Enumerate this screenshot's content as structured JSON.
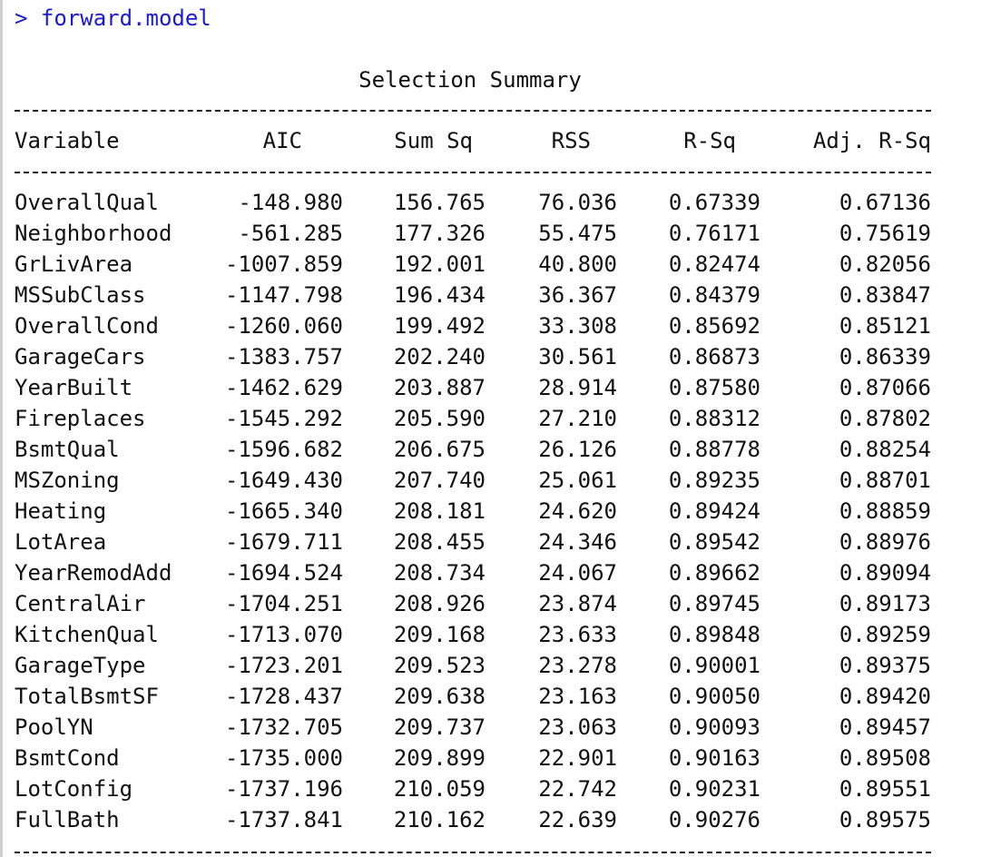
{
  "prompt": {
    "symbol": ">",
    "command": "forward.model"
  },
  "summary": {
    "title": "Selection Summary",
    "headers": {
      "variable": "Variable",
      "aic": "AIC",
      "sum_sq": "Sum Sq",
      "rss": "RSS",
      "r_sq": "R-Sq",
      "adj_r_sq": "Adj. R-Sq"
    },
    "rows": [
      {
        "variable": "OverallQual",
        "aic": "-148.980",
        "sum_sq": "156.765",
        "rss": "76.036",
        "r_sq": "0.67339",
        "adj_r_sq": "0.67136"
      },
      {
        "variable": "Neighborhood",
        "aic": "-561.285",
        "sum_sq": "177.326",
        "rss": "55.475",
        "r_sq": "0.76171",
        "adj_r_sq": "0.75619"
      },
      {
        "variable": "GrLivArea",
        "aic": "-1007.859",
        "sum_sq": "192.001",
        "rss": "40.800",
        "r_sq": "0.82474",
        "adj_r_sq": "0.82056"
      },
      {
        "variable": "MSSubClass",
        "aic": "-1147.798",
        "sum_sq": "196.434",
        "rss": "36.367",
        "r_sq": "0.84379",
        "adj_r_sq": "0.83847"
      },
      {
        "variable": "OverallCond",
        "aic": "-1260.060",
        "sum_sq": "199.492",
        "rss": "33.308",
        "r_sq": "0.85692",
        "adj_r_sq": "0.85121"
      },
      {
        "variable": "GarageCars",
        "aic": "-1383.757",
        "sum_sq": "202.240",
        "rss": "30.561",
        "r_sq": "0.86873",
        "adj_r_sq": "0.86339"
      },
      {
        "variable": "YearBuilt",
        "aic": "-1462.629",
        "sum_sq": "203.887",
        "rss": "28.914",
        "r_sq": "0.87580",
        "adj_r_sq": "0.87066"
      },
      {
        "variable": "Fireplaces",
        "aic": "-1545.292",
        "sum_sq": "205.590",
        "rss": "27.210",
        "r_sq": "0.88312",
        "adj_r_sq": "0.87802"
      },
      {
        "variable": "BsmtQual",
        "aic": "-1596.682",
        "sum_sq": "206.675",
        "rss": "26.126",
        "r_sq": "0.88778",
        "adj_r_sq": "0.88254"
      },
      {
        "variable": "MSZoning",
        "aic": "-1649.430",
        "sum_sq": "207.740",
        "rss": "25.061",
        "r_sq": "0.89235",
        "adj_r_sq": "0.88701"
      },
      {
        "variable": "Heating",
        "aic": "-1665.340",
        "sum_sq": "208.181",
        "rss": "24.620",
        "r_sq": "0.89424",
        "adj_r_sq": "0.88859"
      },
      {
        "variable": "LotArea",
        "aic": "-1679.711",
        "sum_sq": "208.455",
        "rss": "24.346",
        "r_sq": "0.89542",
        "adj_r_sq": "0.88976"
      },
      {
        "variable": "YearRemodAdd",
        "aic": "-1694.524",
        "sum_sq": "208.734",
        "rss": "24.067",
        "r_sq": "0.89662",
        "adj_r_sq": "0.89094"
      },
      {
        "variable": "CentralAir",
        "aic": "-1704.251",
        "sum_sq": "208.926",
        "rss": "23.874",
        "r_sq": "0.89745",
        "adj_r_sq": "0.89173"
      },
      {
        "variable": "KitchenQual",
        "aic": "-1713.070",
        "sum_sq": "209.168",
        "rss": "23.633",
        "r_sq": "0.89848",
        "adj_r_sq": "0.89259"
      },
      {
        "variable": "GarageType",
        "aic": "-1723.201",
        "sum_sq": "209.523",
        "rss": "23.278",
        "r_sq": "0.90001",
        "adj_r_sq": "0.89375"
      },
      {
        "variable": "TotalBsmtSF",
        "aic": "-1728.437",
        "sum_sq": "209.638",
        "rss": "23.163",
        "r_sq": "0.90050",
        "adj_r_sq": "0.89420"
      },
      {
        "variable": "PoolYN",
        "aic": "-1732.705",
        "sum_sq": "209.737",
        "rss": "23.063",
        "r_sq": "0.90093",
        "adj_r_sq": "0.89457"
      },
      {
        "variable": "BsmtCond",
        "aic": "-1735.000",
        "sum_sq": "209.899",
        "rss": "22.901",
        "r_sq": "0.90163",
        "adj_r_sq": "0.89508"
      },
      {
        "variable": "LotConfig",
        "aic": "-1737.196",
        "sum_sq": "210.059",
        "rss": "22.742",
        "r_sq": "0.90231",
        "adj_r_sq": "0.89551"
      },
      {
        "variable": "FullBath",
        "aic": "-1737.841",
        "sum_sq": "210.162",
        "rss": "22.639",
        "r_sq": "0.90276",
        "adj_r_sq": "0.89575"
      }
    ]
  }
}
